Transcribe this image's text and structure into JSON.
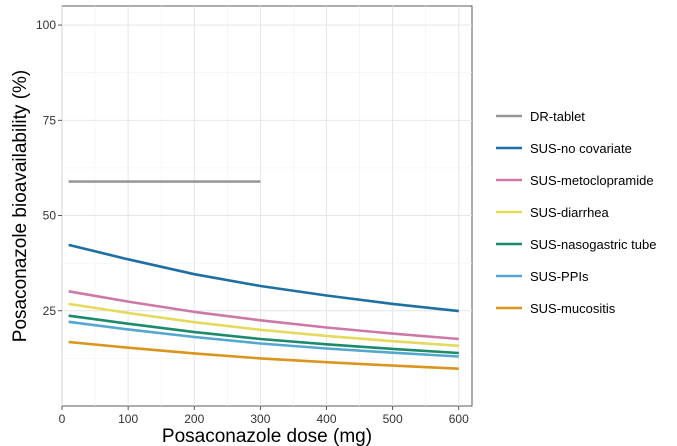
{
  "chart_data": {
    "type": "line",
    "title": "",
    "xlabel": "Posaconazole dose (mg)",
    "ylabel": "Posaconazole bioavailability (%)",
    "xlim": [
      0,
      620
    ],
    "ylim": [
      0,
      105
    ],
    "x_ticks": [
      0,
      100,
      200,
      300,
      400,
      500,
      600
    ],
    "y_ticks": [
      25,
      50,
      75,
      100
    ],
    "grid": true,
    "legend": "right",
    "series": [
      {
        "name": "DR-tablet",
        "color": "#999999",
        "x": [
          10,
          300
        ],
        "y": [
          58.9,
          58.9
        ]
      },
      {
        "name": "SUS-no covariate",
        "color": "#1f6fa3",
        "x": [
          10,
          100,
          200,
          300,
          400,
          500,
          600
        ],
        "y": [
          42.3,
          38.5,
          34.6,
          31.5,
          29.0,
          26.8,
          24.9
        ]
      },
      {
        "name": "SUS-metoclopramide",
        "color": "#cc79a7",
        "x": [
          10,
          100,
          200,
          300,
          400,
          500,
          600
        ],
        "y": [
          30.1,
          27.4,
          24.7,
          22.5,
          20.6,
          19.0,
          17.6
        ]
      },
      {
        "name": "SUS-diarrhea",
        "color": "#e3da5f",
        "x": [
          10,
          100,
          200,
          300,
          400,
          500,
          600
        ],
        "y": [
          26.8,
          24.4,
          22.0,
          20.0,
          18.4,
          17.0,
          15.8
        ]
      },
      {
        "name": "SUS-nasogastric tube",
        "color": "#1d8a6c",
        "x": [
          10,
          100,
          200,
          300,
          400,
          500,
          600
        ],
        "y": [
          23.7,
          21.6,
          19.4,
          17.6,
          16.2,
          15.0,
          13.9
        ]
      },
      {
        "name": "SUS-PPIs",
        "color": "#56a7cf",
        "x": [
          10,
          100,
          200,
          300,
          400,
          500,
          600
        ],
        "y": [
          22.1,
          20.1,
          18.1,
          16.4,
          15.1,
          14.0,
          13.0
        ]
      },
      {
        "name": "SUS-mucositis",
        "color": "#d9951f",
        "x": [
          10,
          100,
          200,
          300,
          400,
          500,
          600
        ],
        "y": [
          16.8,
          15.3,
          13.8,
          12.5,
          11.5,
          10.6,
          9.8
        ]
      }
    ]
  }
}
